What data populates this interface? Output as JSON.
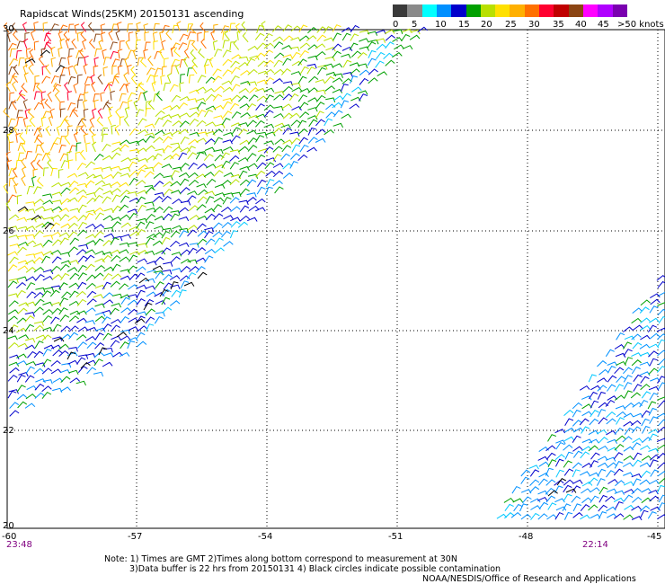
{
  "title": "Rapidscat Winds(25KM) 20150131 ascending",
  "legend": {
    "colors": [
      "#3a3a3a",
      "#8a8a8a",
      "#00ffff",
      "#0090ff",
      "#0000cc",
      "#00a000",
      "#b8e000",
      "#ffe000",
      "#ffb000",
      "#ff7000",
      "#ff0030",
      "#c00000",
      "#8b4513",
      "#ff00ff",
      "#b000ff",
      "#7a00b0"
    ],
    "labels": [
      "0",
      "5",
      "10",
      "15",
      "20",
      "25",
      "30",
      "35",
      "40",
      "45",
      ">50 knots"
    ]
  },
  "axes": {
    "y_labels": [
      "30",
      "28",
      "26",
      "24",
      "22",
      "20"
    ],
    "x_labels": [
      "-60",
      "-57",
      "-54",
      "-51",
      "-48",
      "-45"
    ]
  },
  "times": {
    "left": "23:48",
    "right": "22:14"
  },
  "notes": {
    "line1": "Note: 1) Times are GMT 2)Times along bottom correspond to measurement at 30N",
    "line2": "3)Data buffer is 22 hrs from 20150131 4) Black circles indicate possible contamination"
  },
  "credit": "NOAA/NESDIS/Office of Research and Applications"
}
